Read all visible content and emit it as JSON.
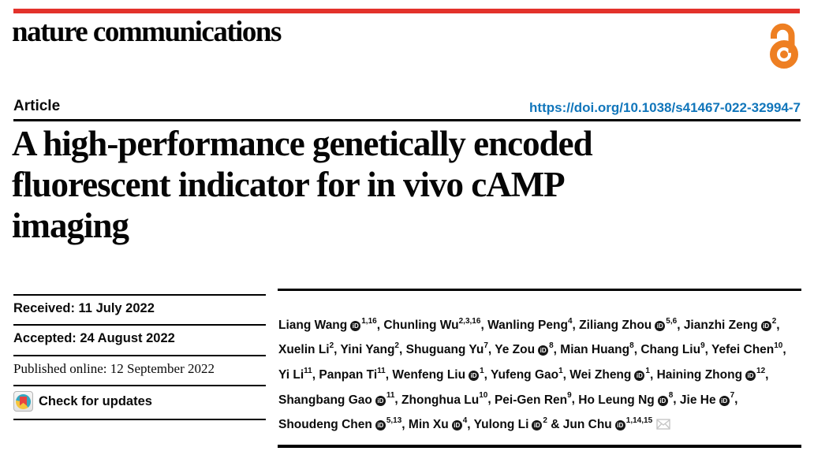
{
  "journal": {
    "name": "nature communications",
    "brand_red": "#e3322b",
    "open_access_orange": "#ee7f22"
  },
  "article": {
    "type_label": "Article",
    "doi_url": "https://doi.org/10.1038/s41467-022-32994-7",
    "link_blue": "#1176bb",
    "title_lines": [
      "A high-performance genetically encoded",
      "fluorescent indicator for in vivo cAMP",
      "imaging"
    ]
  },
  "dates": {
    "received": "Received: 11 July 2022",
    "accepted": "Accepted: 24 August 2022",
    "published": "Published online: 12 September 2022"
  },
  "check_for_updates": {
    "label": "Check for updates",
    "badge_colors": {
      "teal": "#35a7c0",
      "yellow": "#f5c53c",
      "red": "#e8433f"
    }
  },
  "authors": {
    "orcid_icon_text": "iD",
    "separator": ", ",
    "final_separator": " & ",
    "list": [
      {
        "name": "Liang Wang",
        "orcid": true,
        "sup": "1,16"
      },
      {
        "name": "Chunling Wu",
        "orcid": false,
        "sup": "2,3,16"
      },
      {
        "name": "Wanling Peng",
        "orcid": false,
        "sup": "4"
      },
      {
        "name": "Ziliang Zhou",
        "orcid": true,
        "sup": "5,6"
      },
      {
        "name": "Jianzhi Zeng",
        "orcid": true,
        "sup": "2"
      },
      {
        "name": "Xuelin Li",
        "orcid": false,
        "sup": "2"
      },
      {
        "name": "Yini Yang",
        "orcid": false,
        "sup": "2"
      },
      {
        "name": "Shuguang Yu",
        "orcid": false,
        "sup": "7"
      },
      {
        "name": "Ye Zou",
        "orcid": true,
        "sup": "8"
      },
      {
        "name": "Mian Huang",
        "orcid": false,
        "sup": "8"
      },
      {
        "name": "Chang Liu",
        "orcid": false,
        "sup": "9"
      },
      {
        "name": "Yefei Chen",
        "orcid": false,
        "sup": "10"
      },
      {
        "name": "Yi Li",
        "orcid": false,
        "sup": "11"
      },
      {
        "name": "Panpan Ti",
        "orcid": false,
        "sup": "11"
      },
      {
        "name": "Wenfeng Liu",
        "orcid": true,
        "sup": "1"
      },
      {
        "name": "Yufeng Gao",
        "orcid": false,
        "sup": "1"
      },
      {
        "name": "Wei Zheng",
        "orcid": true,
        "sup": "1"
      },
      {
        "name": "Haining Zhong",
        "orcid": true,
        "sup": "12"
      },
      {
        "name": "Shangbang Gao",
        "orcid": true,
        "sup": "11"
      },
      {
        "name": "Zhonghua Lu",
        "orcid": false,
        "sup": "10"
      },
      {
        "name": "Pei-Gen Ren",
        "orcid": false,
        "sup": "9"
      },
      {
        "name": "Ho Leung Ng",
        "orcid": true,
        "sup": "8"
      },
      {
        "name": "Jie He",
        "orcid": true,
        "sup": "7"
      },
      {
        "name": "Shoudeng Chen",
        "orcid": true,
        "sup": "5,13"
      },
      {
        "name": "Min Xu",
        "orcid": true,
        "sup": "4"
      },
      {
        "name": "Yulong Li",
        "orcid": true,
        "sup": "2"
      },
      {
        "name": "Jun Chu",
        "orcid": true,
        "sup": "1,14,15",
        "corresponding": true
      }
    ]
  }
}
